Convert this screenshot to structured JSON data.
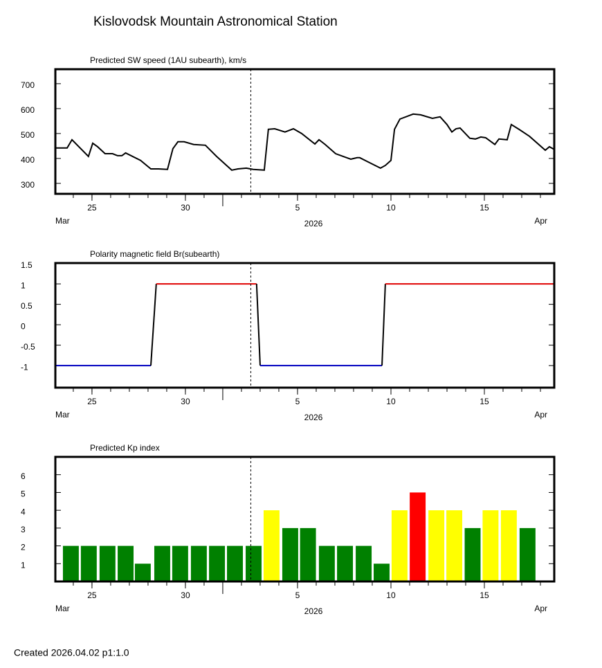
{
  "title": "Kislovodsk Mountain Astronomical Station",
  "footer": "Created  2026.04.02    p1:1.0",
  "chart_data": [
    {
      "type": "line",
      "title": "Predicted SW speed (1AU subearth), km/s",
      "color": "#000000",
      "x": [
        23.04,
        23.67,
        23.93,
        24.81,
        25.04,
        25.3,
        25.7,
        26.1,
        26.37,
        26.6,
        26.8,
        27.6,
        28.15,
        28.56,
        29.04,
        29.33,
        29.6,
        29.93,
        30.44,
        31.07,
        31.67,
        32.48,
        32.81,
        33.26,
        33.63,
        34.22,
        34.44,
        34.78,
        35.33,
        35.78,
        36.22,
        36.93,
        37.15,
        37.48,
        38.04,
        38.85,
        39.19,
        39.33,
        39.7,
        40.44,
        40.7,
        41.0,
        41.19,
        41.48,
        42.19,
        42.59,
        43.22,
        43.63,
        44.0,
        44.26,
        44.48,
        44.7,
        45.22,
        45.52,
        45.81,
        46.07,
        46.56,
        46.78,
        47.22,
        47.44,
        47.85,
        48.41,
        49.26,
        49.48,
        49.74
      ],
      "values": [
        442,
        442,
        475,
        408,
        461,
        447,
        419,
        419,
        411,
        411,
        422,
        392,
        358,
        358,
        356,
        439,
        467,
        467,
        456,
        453,
        408,
        353,
        358,
        361,
        356,
        353,
        517,
        519,
        506,
        519,
        500,
        458,
        475,
        456,
        419,
        397,
        403,
        403,
        389,
        361,
        372,
        392,
        517,
        558,
        578,
        575,
        561,
        567,
        536,
        506,
        519,
        522,
        481,
        478,
        486,
        483,
        456,
        478,
        475,
        536,
        517,
        489,
        433,
        447,
        436
      ],
      "xlim": [
        23.04,
        49.74
      ],
      "xticks": [
        {
          "value": 25,
          "label": "25"
        },
        {
          "value": 30,
          "label": "30"
        },
        {
          "value": 36,
          "label": "5"
        },
        {
          "value": 41,
          "label": "10"
        },
        {
          "value": 46,
          "label": "15"
        }
      ],
      "minor_xticks": [
        24,
        25,
        26,
        27,
        28,
        29,
        30,
        31,
        33,
        34,
        35,
        36,
        37,
        38,
        39,
        40,
        41,
        42,
        43,
        44,
        45,
        46,
        47,
        48,
        49
      ],
      "month_tick": 32,
      "x_period_labels": {
        "start": "Mar",
        "year": "2026",
        "end": "Apr"
      },
      "now_x": 33.5,
      "ylim": [
        258,
        758
      ],
      "yticks": [
        300,
        400,
        500,
        600,
        700
      ]
    },
    {
      "type": "polarity",
      "title": "Polarity magnetic field  Br(subearth)",
      "x": [
        23.04,
        28.15,
        28.44,
        33.81,
        34.0,
        40.52,
        40.7,
        49.74
      ],
      "values": [
        -1,
        -1,
        1,
        1,
        -1,
        -1,
        1,
        1
      ],
      "segment_colors": {
        "positive": "#e00000",
        "negative": "#0000c0",
        "transition": "#000000"
      },
      "xlim": [
        23.04,
        49.74
      ],
      "xticks": [
        {
          "value": 25,
          "label": "25"
        },
        {
          "value": 30,
          "label": "30"
        },
        {
          "value": 36,
          "label": "5"
        },
        {
          "value": 41,
          "label": "10"
        },
        {
          "value": 46,
          "label": "15"
        }
      ],
      "minor_xticks": [
        24,
        25,
        26,
        27,
        28,
        29,
        30,
        31,
        33,
        34,
        35,
        36,
        37,
        38,
        39,
        40,
        41,
        42,
        43,
        44,
        45,
        46,
        47,
        48,
        49
      ],
      "month_tick": 32,
      "x_period_labels": {
        "start": "Mar",
        "year": "2026",
        "end": "Apr"
      },
      "now_x": 33.5,
      "ylim": [
        -1.54,
        1.51
      ],
      "yticks": [
        -1,
        -0.5,
        0,
        0.5,
        1,
        1.5
      ]
    },
    {
      "type": "bar",
      "title": "Predicted Kp index",
      "x": [
        23.87,
        24.83,
        25.83,
        26.8,
        27.72,
        28.76,
        29.72,
        30.72,
        31.69,
        32.65,
        33.65,
        34.61,
        35.61,
        36.56,
        37.57,
        38.54,
        39.54,
        40.5,
        41.46,
        42.43,
        43.43,
        44.39,
        45.37,
        46.33,
        47.31,
        48.31
      ],
      "values": [
        2,
        2,
        2,
        2,
        1,
        2,
        2,
        2,
        2,
        2,
        2,
        4,
        3,
        3,
        2,
        2,
        2,
        1,
        4,
        5,
        4,
        4,
        3,
        4,
        4,
        3
      ],
      "colors": [
        "#008000",
        "#008000",
        "#008000",
        "#008000",
        "#008000",
        "#008000",
        "#008000",
        "#008000",
        "#008000",
        "#008000",
        "#008000",
        "#ffff00",
        "#008000",
        "#008000",
        "#008000",
        "#008000",
        "#008000",
        "#008000",
        "#ffff00",
        "#ff0000",
        "#ffff00",
        "#ffff00",
        "#008000",
        "#ffff00",
        "#ffff00",
        "#008000"
      ],
      "xlim": [
        23.04,
        49.74
      ],
      "xticks": [
        {
          "value": 25,
          "label": "25"
        },
        {
          "value": 30,
          "label": "30"
        },
        {
          "value": 36,
          "label": "5"
        },
        {
          "value": 41,
          "label": "10"
        },
        {
          "value": 46,
          "label": "15"
        }
      ],
      "minor_xticks": [
        24,
        25,
        26,
        27,
        28,
        29,
        30,
        31,
        33,
        34,
        35,
        36,
        37,
        38,
        39,
        40,
        41,
        42,
        43,
        44,
        45,
        46,
        47,
        48,
        49
      ],
      "month_tick": 32,
      "x_period_labels": {
        "start": "Mar",
        "year": "2026",
        "end": "Apr"
      },
      "now_x": 33.5,
      "ylim": [
        0,
        7
      ],
      "yticks": [
        1,
        2,
        3,
        4,
        5,
        6
      ]
    }
  ]
}
